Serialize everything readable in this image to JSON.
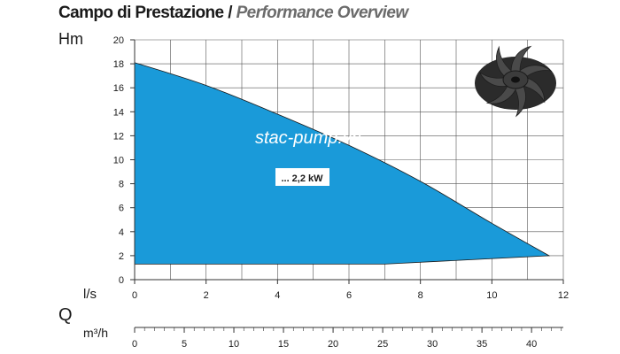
{
  "header": {
    "title_it": "Campo di Prestazione",
    "title_sep": "/",
    "title_en": "Performance Overview"
  },
  "axes": {
    "y_unit": "Hm",
    "x_unit_top": "l/s",
    "q_label": "Q",
    "x_unit_bottom": "m³/h"
  },
  "watermark": "stac-pump.vn",
  "colors": {
    "fill": "#1a9ad9",
    "grid": "#555555",
    "axis": "#333333"
  },
  "icons": [
    "impeller-icon"
  ],
  "chart_data": {
    "type": "area",
    "title": "Campo di Prestazione / Performance Overview",
    "ylabel": "Hm",
    "xlabel": "l/s",
    "ylim": [
      0,
      20
    ],
    "xlim": [
      0,
      12
    ],
    "y_ticks": [
      0,
      2,
      4,
      6,
      8,
      10,
      12,
      14,
      16,
      18,
      20
    ],
    "x_ticks": [
      0,
      2,
      4,
      6,
      8,
      10,
      12
    ],
    "secondary_x": {
      "label": "m³/h",
      "ticks": [
        0,
        5,
        10,
        15,
        20,
        25,
        30,
        35,
        40
      ],
      "minor_step": 1
    },
    "grid": true,
    "series": [
      {
        "name": "... 2,2 kW",
        "upper": [
          [
            0,
            18.1
          ],
          [
            2,
            16.2
          ],
          [
            4,
            13.8
          ],
          [
            6,
            11.2
          ],
          [
            8,
            8.2
          ],
          [
            10,
            4.7
          ],
          [
            11.6,
            2.0
          ]
        ],
        "lower": [
          [
            0,
            1.3
          ],
          [
            7,
            1.3
          ],
          [
            11.6,
            2.0
          ]
        ]
      }
    ],
    "annotations": [
      "... 2,2 kW"
    ]
  }
}
